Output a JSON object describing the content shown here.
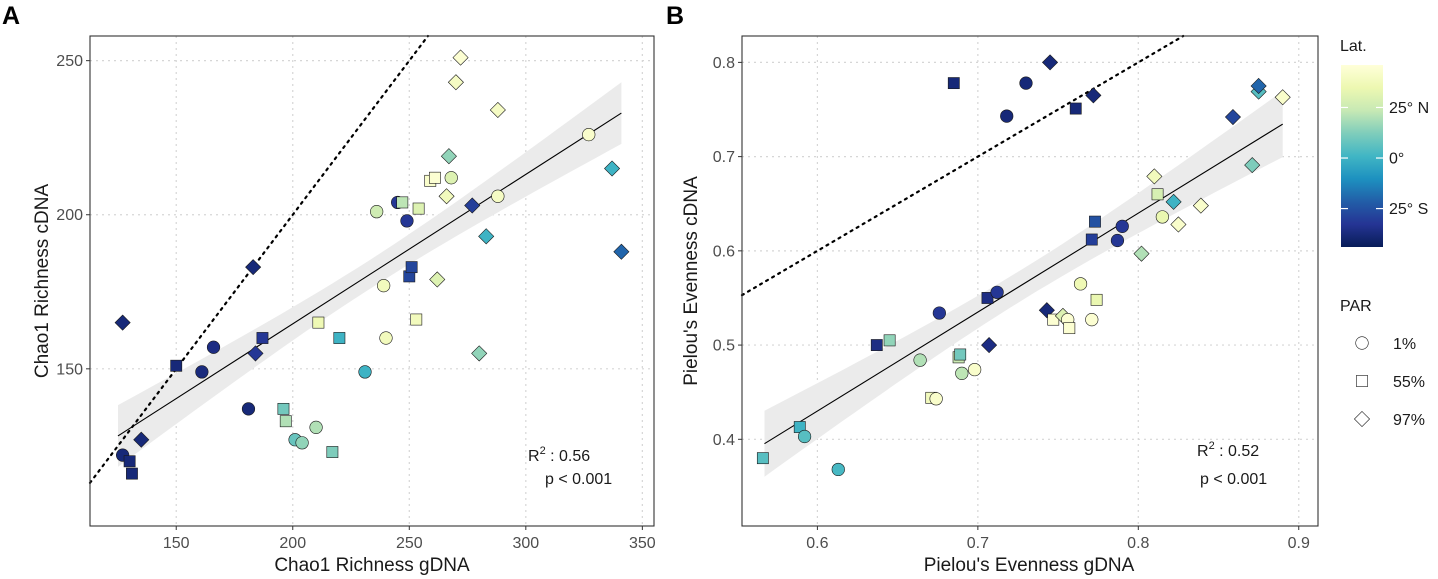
{
  "chart_data": [
    {
      "panel_label": "A",
      "type": "scatter",
      "xlabel": "Chao1 Richness gDNA",
      "ylabel": "Chao1 Richness cDNA",
      "xlim": [
        113,
        355
      ],
      "ylim": [
        99,
        258
      ],
      "xticks": [
        150,
        200,
        250,
        300,
        350
      ],
      "yticks": [
        150,
        200,
        250
      ],
      "grid": true,
      "identity_line": true,
      "fit": {
        "intercept": 67.6,
        "slope": 0.485,
        "x_range": [
          125,
          341
        ],
        "ci_half_width": 10
      },
      "annotation": {
        "r2_label": "R",
        "r2_sup": "2",
        "r2_value": " : 0.56",
        "p_text": "p < 0.001"
      },
      "points": [
        {
          "x": 127,
          "y": 122,
          "shape": "circle",
          "lat": -38
        },
        {
          "x": 130,
          "y": 120,
          "shape": "square",
          "lat": -38
        },
        {
          "x": 131,
          "y": 116,
          "shape": "square",
          "lat": -38
        },
        {
          "x": 135,
          "y": 127,
          "shape": "diamond",
          "lat": -38
        },
        {
          "x": 127,
          "y": 165,
          "shape": "diamond",
          "lat": -38
        },
        {
          "x": 150,
          "y": 151,
          "shape": "square",
          "lat": -38
        },
        {
          "x": 161,
          "y": 149,
          "shape": "circle",
          "lat": -37
        },
        {
          "x": 166,
          "y": 157,
          "shape": "circle",
          "lat": -36
        },
        {
          "x": 181,
          "y": 137,
          "shape": "circle",
          "lat": -38
        },
        {
          "x": 183,
          "y": 183,
          "shape": "diamond",
          "lat": -38
        },
        {
          "x": 184,
          "y": 155,
          "shape": "diamond",
          "lat": -32
        },
        {
          "x": 187,
          "y": 160,
          "shape": "square",
          "lat": -32
        },
        {
          "x": 196,
          "y": 137,
          "shape": "square",
          "lat": 10
        },
        {
          "x": 197,
          "y": 133,
          "shape": "square",
          "lat": 20
        },
        {
          "x": 201,
          "y": 127,
          "shape": "circle",
          "lat": 8
        },
        {
          "x": 204,
          "y": 126,
          "shape": "circle",
          "lat": 15
        },
        {
          "x": 210,
          "y": 131,
          "shape": "circle",
          "lat": 20
        },
        {
          "x": 211,
          "y": 165,
          "shape": "square",
          "lat": 36
        },
        {
          "x": 217,
          "y": 123,
          "shape": "square",
          "lat": 12
        },
        {
          "x": 220,
          "y": 160,
          "shape": "square",
          "lat": 0
        },
        {
          "x": 231,
          "y": 149,
          "shape": "circle",
          "lat": 0
        },
        {
          "x": 236,
          "y": 201,
          "shape": "circle",
          "lat": 26
        },
        {
          "x": 239,
          "y": 177,
          "shape": "circle",
          "lat": 38
        },
        {
          "x": 240,
          "y": 160,
          "shape": "circle",
          "lat": 38
        },
        {
          "x": 245,
          "y": 204,
          "shape": "circle",
          "lat": -32
        },
        {
          "x": 247,
          "y": 204,
          "shape": "square",
          "lat": 22
        },
        {
          "x": 249,
          "y": 198,
          "shape": "circle",
          "lat": -32
        },
        {
          "x": 250,
          "y": 180,
          "shape": "square",
          "lat": -28
        },
        {
          "x": 251,
          "y": 183,
          "shape": "square",
          "lat": -28
        },
        {
          "x": 253,
          "y": 166,
          "shape": "square",
          "lat": 38
        },
        {
          "x": 254,
          "y": 202,
          "shape": "square",
          "lat": 30
        },
        {
          "x": 259,
          "y": 211,
          "shape": "square",
          "lat": 42
        },
        {
          "x": 261,
          "y": 212,
          "shape": "square",
          "lat": 44
        },
        {
          "x": 262,
          "y": 179,
          "shape": "diamond",
          "lat": 30
        },
        {
          "x": 266,
          "y": 206,
          "shape": "diamond",
          "lat": 38
        },
        {
          "x": 267,
          "y": 219,
          "shape": "diamond",
          "lat": 15
        },
        {
          "x": 268,
          "y": 212,
          "shape": "circle",
          "lat": 30
        },
        {
          "x": 270,
          "y": 243,
          "shape": "diamond",
          "lat": 40
        },
        {
          "x": 272,
          "y": 251,
          "shape": "diamond",
          "lat": 44
        },
        {
          "x": 277,
          "y": 203,
          "shape": "diamond",
          "lat": -30
        },
        {
          "x": 280,
          "y": 155,
          "shape": "diamond",
          "lat": 15
        },
        {
          "x": 283,
          "y": 193,
          "shape": "diamond",
          "lat": 0
        },
        {
          "x": 288,
          "y": 206,
          "shape": "circle",
          "lat": 40
        },
        {
          "x": 288,
          "y": 234,
          "shape": "diamond",
          "lat": 40
        },
        {
          "x": 327,
          "y": 226,
          "shape": "circle",
          "lat": 42
        },
        {
          "x": 337,
          "y": 215,
          "shape": "diamond",
          "lat": 0
        },
        {
          "x": 341,
          "y": 188,
          "shape": "diamond",
          "lat": -20
        }
      ]
    },
    {
      "panel_label": "B",
      "type": "scatter",
      "xlabel": "Pielou's Evenness gDNA",
      "ylabel": "Pielou's Evenness cDNA",
      "xlim": [
        0.553,
        0.912
      ],
      "ylim": [
        0.308,
        0.828
      ],
      "xticks": [
        0.6,
        0.7,
        0.8,
        0.9
      ],
      "yticks": [
        0.4,
        0.5,
        0.6,
        0.7,
        0.8
      ],
      "grid": true,
      "identity_line": true,
      "fit": {
        "intercept": -0.2,
        "slope": 1.05,
        "x_range": [
          0.567,
          0.89
        ],
        "ci_half_width": 0.035
      },
      "annotation": {
        "r2_label": "R",
        "r2_sup": "2",
        "r2_value": " : 0.52",
        "p_text": "p < 0.001"
      },
      "points": [
        {
          "x": 0.566,
          "y": 0.38,
          "shape": "square",
          "lat": 5
        },
        {
          "x": 0.589,
          "y": 0.413,
          "shape": "square",
          "lat": 0
        },
        {
          "x": 0.592,
          "y": 0.403,
          "shape": "circle",
          "lat": 5
        },
        {
          "x": 0.613,
          "y": 0.368,
          "shape": "circle",
          "lat": 2
        },
        {
          "x": 0.637,
          "y": 0.5,
          "shape": "square",
          "lat": -36
        },
        {
          "x": 0.645,
          "y": 0.505,
          "shape": "square",
          "lat": 15
        },
        {
          "x": 0.664,
          "y": 0.484,
          "shape": "circle",
          "lat": 20
        },
        {
          "x": 0.671,
          "y": 0.444,
          "shape": "square",
          "lat": 38
        },
        {
          "x": 0.674,
          "y": 0.443,
          "shape": "circle",
          "lat": 42
        },
        {
          "x": 0.676,
          "y": 0.534,
          "shape": "circle",
          "lat": -32
        },
        {
          "x": 0.685,
          "y": 0.778,
          "shape": "square",
          "lat": -38
        },
        {
          "x": 0.688,
          "y": 0.487,
          "shape": "square",
          "lat": 25
        },
        {
          "x": 0.689,
          "y": 0.49,
          "shape": "square",
          "lat": 10
        },
        {
          "x": 0.69,
          "y": 0.47,
          "shape": "circle",
          "lat": 22
        },
        {
          "x": 0.698,
          "y": 0.474,
          "shape": "circle",
          "lat": 42
        },
        {
          "x": 0.706,
          "y": 0.55,
          "shape": "square",
          "lat": -36
        },
        {
          "x": 0.707,
          "y": 0.5,
          "shape": "diamond",
          "lat": -36
        },
        {
          "x": 0.712,
          "y": 0.556,
          "shape": "circle",
          "lat": -32
        },
        {
          "x": 0.718,
          "y": 0.743,
          "shape": "circle",
          "lat": -38
        },
        {
          "x": 0.73,
          "y": 0.778,
          "shape": "circle",
          "lat": -38
        },
        {
          "x": 0.743,
          "y": 0.537,
          "shape": "diamond",
          "lat": -38
        },
        {
          "x": 0.745,
          "y": 0.8,
          "shape": "diamond",
          "lat": -38
        },
        {
          "x": 0.747,
          "y": 0.527,
          "shape": "square",
          "lat": 44
        },
        {
          "x": 0.753,
          "y": 0.531,
          "shape": "diamond",
          "lat": 30
        },
        {
          "x": 0.756,
          "y": 0.527,
          "shape": "circle",
          "lat": 44
        },
        {
          "x": 0.757,
          "y": 0.518,
          "shape": "square",
          "lat": 44
        },
        {
          "x": 0.761,
          "y": 0.751,
          "shape": "square",
          "lat": -38
        },
        {
          "x": 0.764,
          "y": 0.565,
          "shape": "circle",
          "lat": 36
        },
        {
          "x": 0.771,
          "y": 0.612,
          "shape": "square",
          "lat": -30
        },
        {
          "x": 0.771,
          "y": 0.527,
          "shape": "circle",
          "lat": 44
        },
        {
          "x": 0.772,
          "y": 0.765,
          "shape": "diamond",
          "lat": -38
        },
        {
          "x": 0.773,
          "y": 0.631,
          "shape": "square",
          "lat": -25
        },
        {
          "x": 0.774,
          "y": 0.548,
          "shape": "square",
          "lat": 34
        },
        {
          "x": 0.787,
          "y": 0.611,
          "shape": "circle",
          "lat": -32
        },
        {
          "x": 0.79,
          "y": 0.626,
          "shape": "circle",
          "lat": -32
        },
        {
          "x": 0.802,
          "y": 0.597,
          "shape": "diamond",
          "lat": 20
        },
        {
          "x": 0.81,
          "y": 0.679,
          "shape": "diamond",
          "lat": 38
        },
        {
          "x": 0.812,
          "y": 0.66,
          "shape": "square",
          "lat": 28
        },
        {
          "x": 0.815,
          "y": 0.636,
          "shape": "circle",
          "lat": 34
        },
        {
          "x": 0.822,
          "y": 0.652,
          "shape": "diamond",
          "lat": 0
        },
        {
          "x": 0.825,
          "y": 0.628,
          "shape": "diamond",
          "lat": 42
        },
        {
          "x": 0.839,
          "y": 0.648,
          "shape": "diamond",
          "lat": 42
        },
        {
          "x": 0.859,
          "y": 0.742,
          "shape": "diamond",
          "lat": -28
        },
        {
          "x": 0.871,
          "y": 0.691,
          "shape": "diamond",
          "lat": 12
        },
        {
          "x": 0.875,
          "y": 0.769,
          "shape": "diamond",
          "lat": 5
        },
        {
          "x": 0.875,
          "y": 0.775,
          "shape": "diamond",
          "lat": -20
        },
        {
          "x": 0.89,
          "y": 0.763,
          "shape": "diamond",
          "lat": 42
        }
      ]
    }
  ],
  "legend": {
    "lat_title": "Lat.",
    "lat_range": [
      -44,
      46
    ],
    "lat_ticks": [
      {
        "value": 25,
        "label": "25° N"
      },
      {
        "value": 0,
        "label": "0°"
      },
      {
        "value": -25,
        "label": "25° S"
      }
    ],
    "colormap": [
      "#081d58",
      "#253494",
      "#225ea8",
      "#1d91c0",
      "#41b6c4",
      "#7fcdbb",
      "#c7e9b4",
      "#edf8b1",
      "#ffffd9"
    ],
    "par_title": "PAR",
    "par_items": [
      {
        "shape": "circle",
        "label": "1%"
      },
      {
        "shape": "square",
        "label": "55%"
      },
      {
        "shape": "diamond",
        "label": "97%"
      }
    ]
  }
}
